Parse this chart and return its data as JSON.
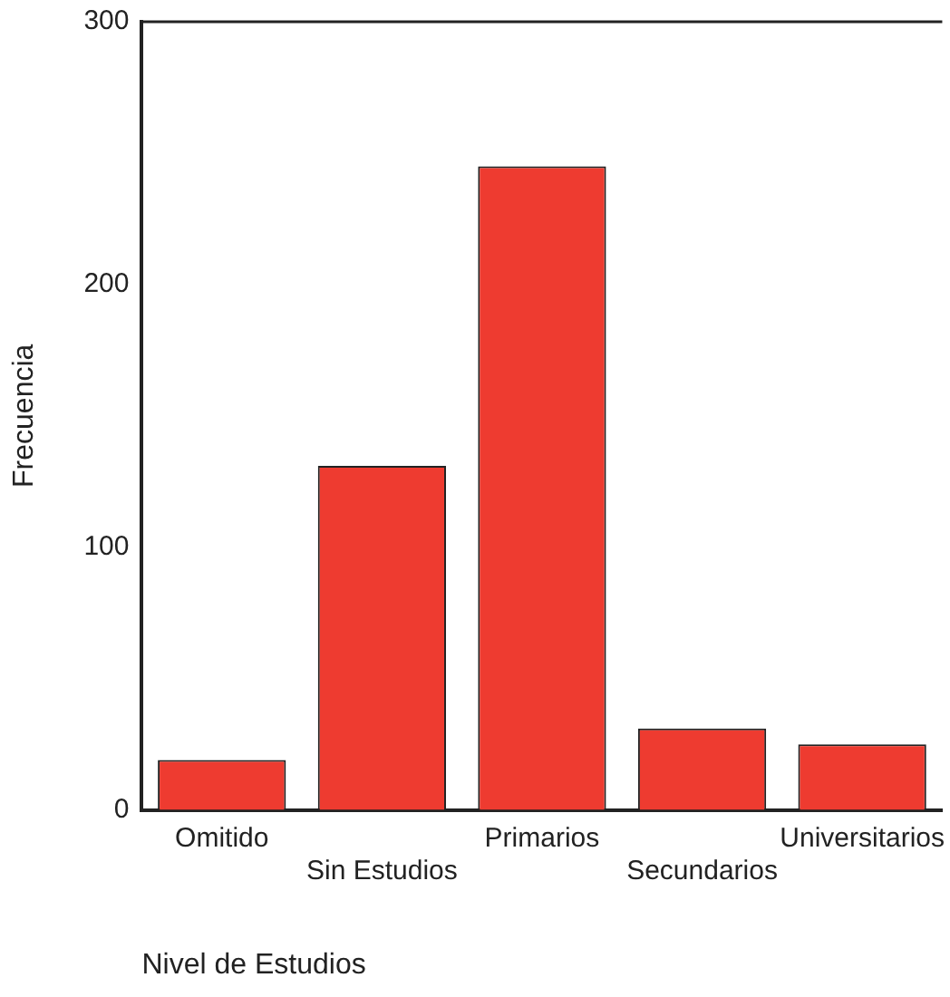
{
  "chart_data": {
    "type": "bar",
    "xlabel": "Nivel de Estudios",
    "ylabel": "Frecuencia",
    "categories": [
      "Omitido",
      "Sin Estudios",
      "Primarios",
      "Secundarios",
      "Universitarios"
    ],
    "values": [
      19,
      131,
      245,
      31,
      25
    ],
    "color": "#ee3b30",
    "ylim": [
      0,
      300
    ],
    "yticks": [
      0,
      100,
      200,
      300
    ],
    "grid": false
  }
}
